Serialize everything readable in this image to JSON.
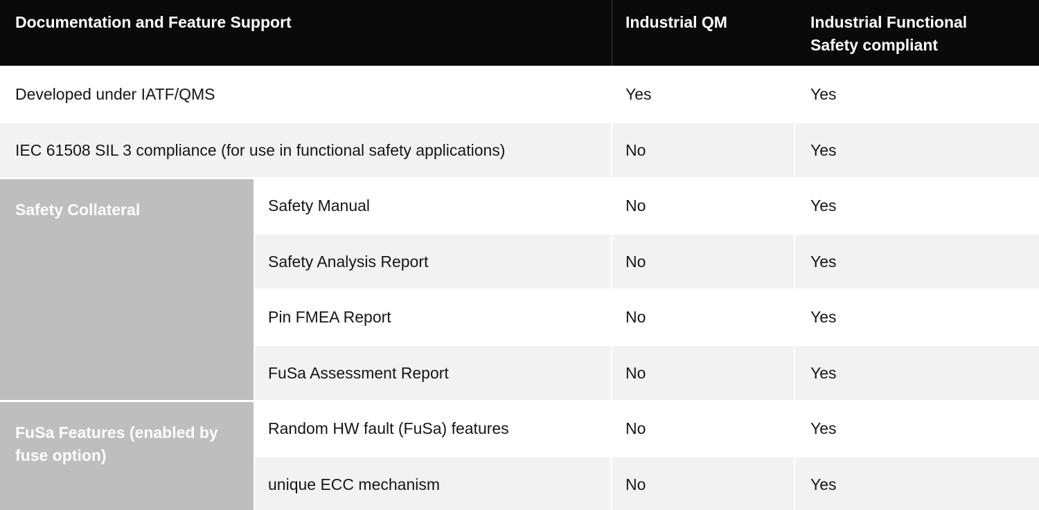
{
  "header": {
    "feature_col": "Documentation and Feature Support",
    "qm_col": "Industrial QM",
    "fusa_col": "Industrial Functional Safety compliant"
  },
  "rows": [
    {
      "label": "Developed under IATF/QMS",
      "qm": "Yes",
      "fusa": "Yes"
    },
    {
      "label": "IEC 61508 SIL 3 compliance (for use in functional safety applications)",
      "qm": "No",
      "fusa": "Yes"
    }
  ],
  "sections": [
    {
      "label": "Safety Collateral",
      "rows": [
        {
          "label": "Safety Manual",
          "qm": "No",
          "fusa": "Yes"
        },
        {
          "label": "Safety Analysis Report",
          "qm": "No",
          "fusa": "Yes"
        },
        {
          "label": "Pin FMEA Report",
          "qm": "No",
          "fusa": "Yes"
        },
        {
          "label": "FuSa Assessment Report",
          "qm": "No",
          "fusa": "Yes"
        }
      ]
    },
    {
      "label": "FuSa Features (enabled by fuse option)",
      "rows": [
        {
          "label": "Random HW fault (FuSa) features",
          "qm": "No",
          "fusa": "Yes"
        },
        {
          "label": "unique ECC mechanism",
          "qm": "No",
          "fusa": "Yes"
        }
      ]
    }
  ],
  "colors": {
    "header_bg": "#0a0a0a",
    "header_text": "#ffffff",
    "row_alt_bg": "#f2f2f2",
    "section_block_bg": "#bebebe",
    "section_label_text": "#fcfcfc",
    "body_text": "#161616",
    "header_divider": "#3d3d3d"
  }
}
